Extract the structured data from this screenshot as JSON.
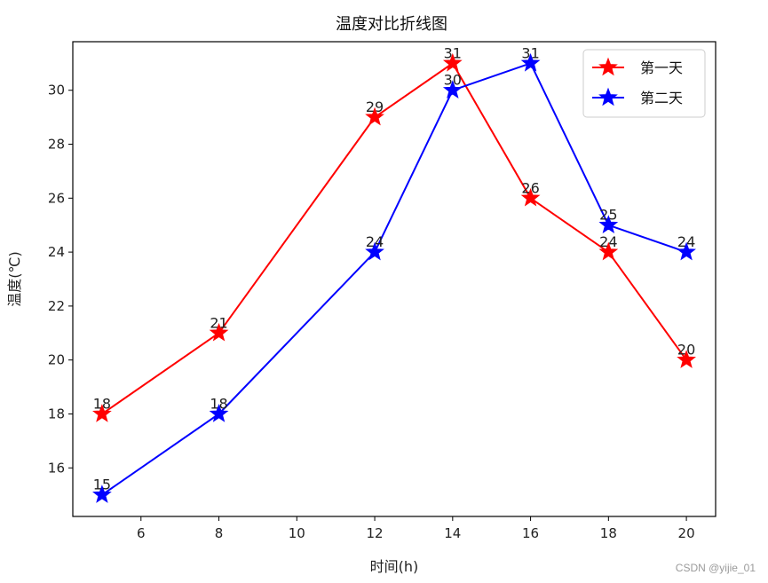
{
  "chart_data": {
    "type": "line",
    "title": "温度对比折线图",
    "xlabel": "时间(h)",
    "ylabel": "温度(℃)",
    "x": [
      5,
      8,
      12,
      14,
      16,
      18,
      20
    ],
    "xticks": [
      6,
      8,
      10,
      12,
      14,
      16,
      18,
      20
    ],
    "yticks": [
      16,
      18,
      20,
      22,
      24,
      26,
      28,
      30
    ],
    "xlim": [
      4.25,
      20.75
    ],
    "ylim": [
      14.2,
      31.8
    ],
    "series": [
      {
        "name": "第一天",
        "color": "#ff0000",
        "marker": "star",
        "values": [
          18,
          21,
          29,
          31,
          26,
          24,
          20
        ]
      },
      {
        "name": "第二天",
        "color": "#0000ff",
        "marker": "star",
        "values": [
          15,
          18,
          24,
          30,
          31,
          25,
          24
        ]
      }
    ],
    "legend_position": "top-right"
  },
  "watermark": "CSDN @yijie_01"
}
